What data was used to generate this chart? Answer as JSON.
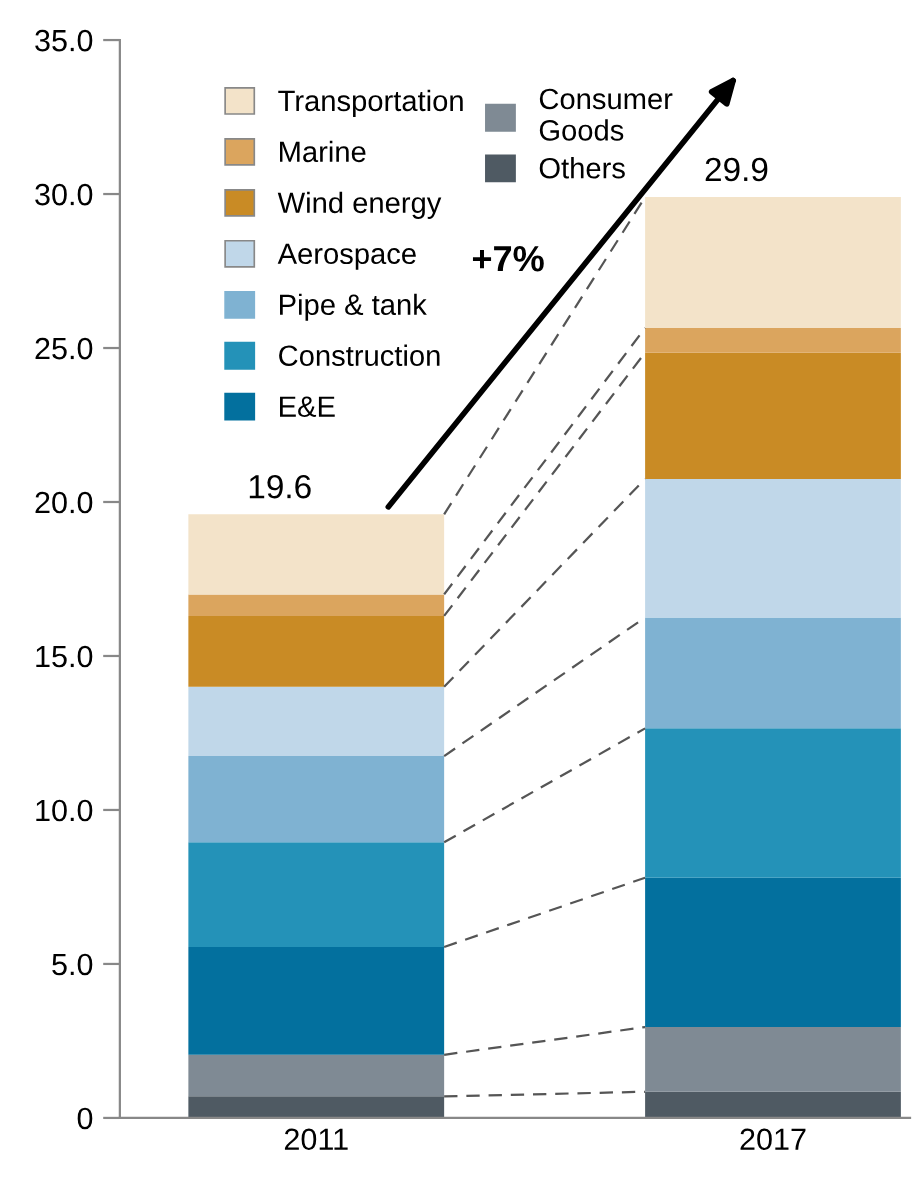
{
  "chart_data": {
    "type": "bar",
    "stacked": true,
    "categories": [
      "2011",
      "2017"
    ],
    "series": [
      {
        "name": "Others",
        "color": "#4f5a63",
        "values": [
          0.7,
          0.85
        ]
      },
      {
        "name": "Consumer Goods",
        "color": "#7f8a94",
        "values": [
          1.35,
          2.1
        ]
      },
      {
        "name": "E&E",
        "color": "#03709e",
        "values": [
          3.5,
          4.85
        ]
      },
      {
        "name": "Construction",
        "color": "#2492b8",
        "values": [
          3.4,
          4.85
        ]
      },
      {
        "name": "Pipe & tank",
        "color": "#7fb2d2",
        "values": [
          2.8,
          3.6
        ]
      },
      {
        "name": "Aerospace",
        "color": "#c0d7e9",
        "values": [
          2.25,
          4.5
        ]
      },
      {
        "name": "Wind energy",
        "color": "#c98b25",
        "values": [
          2.3,
          4.1
        ]
      },
      {
        "name": "Marine",
        "color": "#dba55e",
        "values": [
          0.7,
          0.8
        ]
      },
      {
        "name": "Transportation",
        "color": "#f3e3c9",
        "values": [
          2.6,
          4.25
        ]
      }
    ],
    "totals": [
      "19.6",
      "29.9"
    ],
    "annotations": [
      "+7%"
    ],
    "ylim": [
      0,
      35
    ],
    "yticks": [
      {
        "value": 0,
        "label": "0"
      },
      {
        "value": 5,
        "label": "5.0"
      },
      {
        "value": 10,
        "label": "10.0"
      },
      {
        "value": 15,
        "label": "15.0"
      },
      {
        "value": 20,
        "label": "20.0"
      },
      {
        "value": 25,
        "label": "25.0"
      },
      {
        "value": 30,
        "label": "30.0"
      },
      {
        "value": 35,
        "label": "35.0"
      }
    ],
    "grid": false,
    "legend": "top left"
  }
}
